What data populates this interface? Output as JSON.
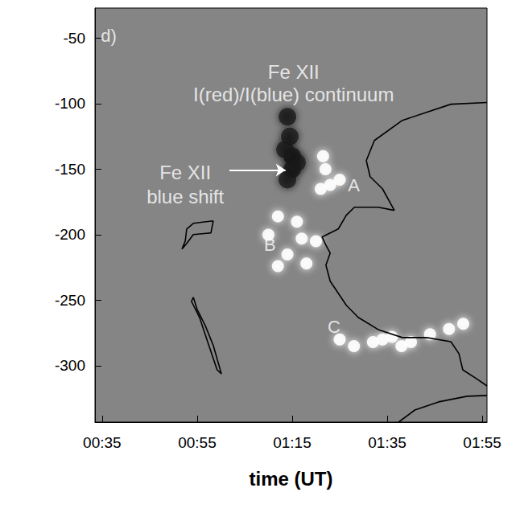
{
  "chart_data": {
    "type": "scatter",
    "x_label": "time (UT)",
    "xlim": [
      33.5,
      116
    ],
    "xticks": [
      {
        "value": 35,
        "label": "00:35"
      },
      {
        "value": 55,
        "label": "00:55"
      },
      {
        "value": 75,
        "label": "01:15"
      },
      {
        "value": 95,
        "label": "01:35"
      },
      {
        "value": 115,
        "label": "01:55"
      }
    ],
    "ylim": [
      -343,
      -27
    ],
    "yticks": [
      -300,
      -250,
      -200,
      -150,
      -100,
      -50
    ],
    "grid": false,
    "annotations": [
      {
        "text": "d)",
        "x": 36.4,
        "y": -48
      },
      {
        "text": "Fe XII",
        "x": 75.3,
        "y": -75.8
      },
      {
        "text": "I(red)/I(blue) continuum",
        "x": 75.3,
        "y": -93
      },
      {
        "text": "Fe XII",
        "x": 52.5,
        "y": -152.6,
        "arrow_from": [
          61.8,
          -150.7
        ],
        "arrow_to": [
          73.6,
          -150.7
        ]
      },
      {
        "text": "blue shift",
        "x": 52.5,
        "y": -171
      },
      {
        "text": "A",
        "x": 88,
        "y": -162
      },
      {
        "text": "B",
        "x": 70.3,
        "y": -208
      },
      {
        "text": "C",
        "x": 83.8,
        "y": -270.5
      }
    ],
    "series": [
      {
        "type": "scatter",
        "color": "#141414",
        "x": [
          74,
          74.5,
          75,
          75,
          74,
          76,
          73.5
        ],
        "values": [
          -110,
          -125,
          -140,
          -150,
          -158,
          -145,
          -135
        ]
      },
      {
        "type": "scatter",
        "color": "#ffffff",
        "x": [
          81.5,
          82,
          83,
          81,
          85
        ],
        "values": [
          -140,
          -150,
          -162,
          -165,
          -158
        ]
      },
      {
        "type": "scatter",
        "color": "#ffffff",
        "x": [
          72,
          76,
          70,
          74,
          78,
          72,
          80,
          77
        ],
        "values": [
          -186,
          -190,
          -200,
          -215,
          -222,
          -224,
          -205,
          -203
        ]
      },
      {
        "type": "scatter",
        "color": "#ffffff",
        "x": [
          85,
          88,
          92,
          96,
          100,
          104,
          108,
          111,
          98,
          94
        ],
        "values": [
          -280,
          -285,
          -282,
          -278,
          -282,
          -276,
          -272,
          -268,
          -285,
          -280
        ]
      },
      {
        "type": "line",
        "color": "#000000",
        "x": [
          116.0,
          108.4,
          98.2,
          92.3,
          90.6,
          91.4,
          94.0,
          96.5,
          93.1,
          88.1,
          86.4,
          84.7,
          83.0,
          81.3,
          82.1,
          83.0,
          82.1,
          83.0,
          84.7,
          86.4,
          88.9,
          93.1,
          98.2,
          103.3,
          108.4,
          110.1,
          110.9,
          113.5,
          116.0
        ],
        "values": [
          -99.1,
          -100.4,
          -112.7,
          -128.1,
          -143.4,
          -155.7,
          -164.9,
          -181.4,
          -179.0,
          -179.0,
          -185.1,
          -195.6,
          -198.6,
          -201.7,
          -207.9,
          -214.0,
          -223.2,
          -235.5,
          -244.7,
          -253.9,
          -263.1,
          -272.4,
          -278.5,
          -278.5,
          -281.6,
          -290.8,
          -303.1,
          -309.2,
          -315.4
        ]
      },
      {
        "type": "line",
        "color": "#000000",
        "x": [
          116.0,
          111.8,
          105.8,
          100.8,
          97.4
        ],
        "values": [
          -322.7,
          -323.3,
          -327.6,
          -333.8,
          -343.0
        ]
      },
      {
        "type": "line",
        "color": "#000000",
        "x": [
          58.4,
          54.2,
          52.8,
          52.5,
          51.8,
          52.8,
          54.2,
          57.9,
          58.4
        ],
        "values": [
          -189.4,
          -191.3,
          -195.6,
          -204.8,
          -210.9,
          -206.6,
          -199.9,
          -198.6,
          -189.4
        ]
      },
      {
        "type": "line",
        "color": "#000000",
        "x": [
          54.2,
          55.0,
          56.7,
          58.4,
          60.1,
          59.2,
          57.2,
          55.5,
          53.8,
          54.2
        ],
        "values": [
          -247.8,
          -257.0,
          -269.3,
          -284.6,
          -306.1,
          -303.1,
          -281.6,
          -263.1,
          -250.8,
          -247.8
        ]
      }
    ]
  }
}
